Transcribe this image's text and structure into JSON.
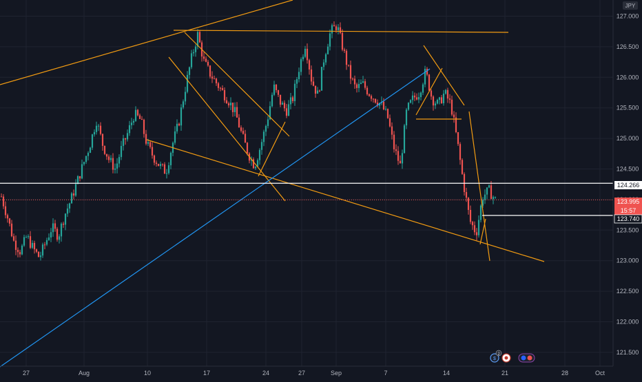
{
  "chart_data": {
    "type": "candlestick",
    "currency_label": "JPY",
    "y_ticks": [
      "127.000",
      "126.500",
      "126.000",
      "125.500",
      "125.000",
      "124.500",
      "124.000",
      "123.500",
      "123.000",
      "122.500",
      "122.000",
      "121.500"
    ],
    "ylim": [
      121.4,
      127.2
    ],
    "x_ticks": [
      "27",
      "Aug",
      "10",
      "17",
      "24",
      "27",
      "Sep",
      "7",
      "14",
      "21",
      "28",
      "Oct"
    ],
    "price_labels": {
      "level_high": "124.266",
      "current_price": "123.995",
      "countdown": "15:57",
      "level_low": "123.740"
    },
    "horizontal_levels": [
      124.266,
      123.74
    ],
    "current_price": 123.995,
    "series_shape": [
      124.05,
      123.7,
      123.3,
      123.15,
      123.4,
      123.2,
      123.05,
      123.3,
      123.55,
      123.4,
      123.75,
      124.0,
      124.3,
      124.6,
      124.9,
      125.3,
      124.9,
      124.65,
      124.5,
      124.85,
      125.1,
      125.4,
      125.3,
      124.9,
      124.7,
      124.55,
      124.45,
      124.9,
      125.25,
      125.8,
      126.3,
      126.7,
      126.25,
      126.05,
      125.9,
      125.75,
      125.6,
      125.4,
      125.05,
      124.75,
      124.55,
      124.9,
      125.3,
      125.85,
      125.6,
      125.45,
      125.65,
      126.15,
      126.55,
      125.95,
      125.7,
      126.35,
      126.75,
      126.85,
      126.45,
      126.05,
      125.8,
      125.9,
      125.75,
      125.65,
      125.55,
      125.35,
      124.85,
      124.55,
      125.45,
      125.65,
      125.75,
      126.1,
      125.65,
      125.55,
      125.75,
      125.55,
      124.95,
      124.25,
      123.65,
      123.45,
      124.05,
      124.15,
      123.995
    ],
    "currency_icons": [
      "dollar-badge",
      "yen-badge",
      "dual-currency-badge"
    ],
    "event_count": "2",
    "colors": {
      "background": "#131722",
      "grid": "#1f2330",
      "up": "#26a69a",
      "down": "#ef5350",
      "trendline_orange": "#f39c12",
      "trendline_blue": "#2196f3",
      "level_line": "#ffffff",
      "price_dotted": "#ef5350"
    }
  }
}
